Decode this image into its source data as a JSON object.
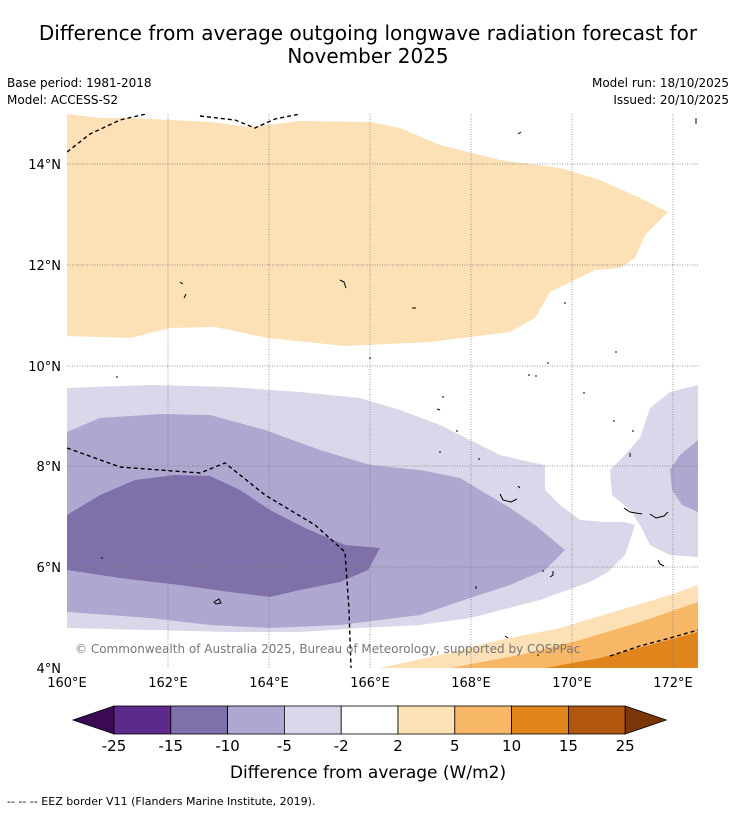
{
  "title_line1": "Difference from average outgoing longwave radiation forecast for",
  "title_line2": "November 2025",
  "base_period": "Base period: 1981-2018",
  "model": "Model: ACCESS-S2",
  "model_run": "Model run: 18/10/2025",
  "issued": "Issued: 20/10/2025",
  "map": {
    "lon_labels": [
      "160°E",
      "162°E",
      "164°E",
      "166°E",
      "168°E",
      "170°E",
      "172°E"
    ],
    "lat_labels": [
      "14°N",
      "12°N",
      "10°N",
      "8°N",
      "6°N",
      "4°N"
    ],
    "copyright": "© Commonwealth of Australia 2025, Bureau of Meteorology, supported by COSPPac"
  },
  "colorbar": {
    "ticks": [
      "-25",
      "-15",
      "-10",
      "-5",
      "-2",
      "2",
      "5",
      "10",
      "15",
      "25"
    ],
    "colors": [
      "#3b0a55",
      "#5c2a8a",
      "#7f70aa",
      "#aea7d0",
      "#d8d8ea",
      "#ffffff",
      "#fce0b6",
      "#f8b766",
      "#e0851b",
      "#b25610",
      "#7a3609"
    ],
    "label": "Difference from average (W/m2)"
  },
  "footnote": "--  --  -- EEZ border V11 (Flanders Marine Institute, 2019)."
}
